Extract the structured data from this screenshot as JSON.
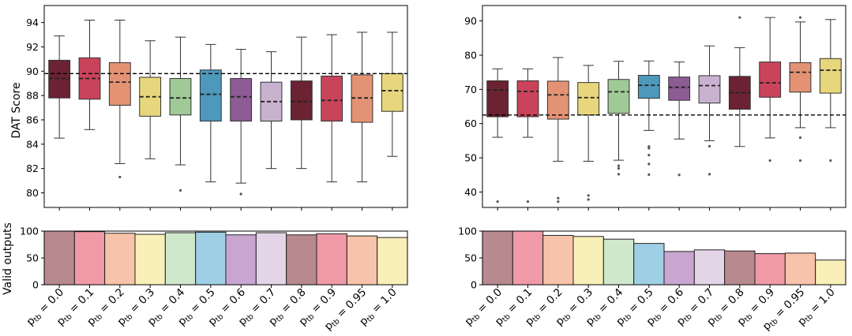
{
  "ylabel_top": "DAT Score",
  "ylabel_bottom": "Valid outputs",
  "chart_data": [
    {
      "type": "box",
      "panel": "top-left",
      "ylabel": "DAT Score",
      "ylim": [
        78.8,
        95.4
      ],
      "yticks": [
        "80",
        "82",
        "84",
        "86",
        "88",
        "90",
        "92",
        "94"
      ],
      "ytick_values": [
        80,
        82,
        84,
        86,
        88,
        90,
        92,
        94
      ],
      "reference_line": 89.8,
      "boxes": [
        {
          "q1": 87.8,
          "q3": 90.9,
          "median": 89.4,
          "whislo": 84.5,
          "whishi": 92.9,
          "fliers": []
        },
        {
          "q1": 87.7,
          "q3": 91.1,
          "median": 89.4,
          "whislo": 85.2,
          "whishi": 94.2,
          "fliers": []
        },
        {
          "q1": 87.2,
          "q3": 90.7,
          "median": 89.1,
          "whislo": 82.4,
          "whishi": 94.2,
          "fliers": [
            81.3
          ]
        },
        {
          "q1": 86.3,
          "q3": 89.5,
          "median": 87.9,
          "whislo": 82.8,
          "whishi": 92.5,
          "fliers": []
        },
        {
          "q1": 86.4,
          "q3": 89.4,
          "median": 87.8,
          "whislo": 82.3,
          "whishi": 92.8,
          "fliers": [
            80.2
          ]
        },
        {
          "q1": 85.9,
          "q3": 90.1,
          "median": 88.1,
          "whislo": 80.9,
          "whishi": 92.2,
          "fliers": []
        },
        {
          "q1": 85.9,
          "q3": 89.4,
          "median": 87.9,
          "whislo": 80.8,
          "whishi": 91.8,
          "fliers": [
            79.9
          ]
        },
        {
          "q1": 85.9,
          "q3": 89.1,
          "median": 87.5,
          "whislo": 82.0,
          "whishi": 91.6,
          "fliers": []
        },
        {
          "q1": 86.0,
          "q3": 89.2,
          "median": 87.5,
          "whislo": 82.0,
          "whishi": 92.8,
          "fliers": []
        },
        {
          "q1": 85.9,
          "q3": 89.6,
          "median": 87.6,
          "whislo": 80.9,
          "whishi": 93.0,
          "fliers": []
        },
        {
          "q1": 85.8,
          "q3": 89.7,
          "median": 87.8,
          "whislo": 80.9,
          "whishi": 93.2,
          "fliers": []
        },
        {
          "q1": 86.7,
          "q3": 89.8,
          "median": 88.4,
          "whislo": 83.0,
          "whishi": 93.2,
          "fliers": []
        }
      ]
    },
    {
      "type": "box",
      "panel": "top-right",
      "ylabel": "",
      "ylim": [
        35.5,
        94.5
      ],
      "yticks": [
        "40",
        "50",
        "60",
        "70",
        "80",
        "90"
      ],
      "ytick_values": [
        40,
        50,
        60,
        70,
        80,
        90
      ],
      "reference_line": 62.5,
      "boxes": [
        {
          "q1": 62.0,
          "q3": 72.5,
          "median": 69.8,
          "whislo": 56.0,
          "whishi": 76.0,
          "fliers": [
            37.2
          ]
        },
        {
          "q1": 62.0,
          "q3": 72.5,
          "median": 69.4,
          "whislo": 56.0,
          "whishi": 76.0,
          "fliers": [
            37.2
          ]
        },
        {
          "q1": 61.3,
          "q3": 72.4,
          "median": 68.4,
          "whislo": 49.0,
          "whishi": 79.3,
          "fliers": [
            38.2,
            37.2
          ]
        },
        {
          "q1": 62.5,
          "q3": 72.0,
          "median": 67.6,
          "whislo": 49.0,
          "whishi": 77.0,
          "fliers": [
            39.0,
            37.8
          ]
        },
        {
          "q1": 63.0,
          "q3": 72.9,
          "median": 69.3,
          "whislo": 49.3,
          "whishi": 78.2,
          "fliers": [
            47.7,
            46.9,
            45.2
          ]
        },
        {
          "q1": 67.4,
          "q3": 74.1,
          "median": 71.2,
          "whislo": 58.0,
          "whishi": 78.3,
          "fliers": [
            53.3,
            52.8,
            50.8,
            48.2,
            45.1
          ]
        },
        {
          "q1": 66.8,
          "q3": 73.6,
          "median": 70.6,
          "whislo": 55.5,
          "whishi": 78.0,
          "fliers": [
            45.0
          ]
        },
        {
          "q1": 66.0,
          "q3": 74.0,
          "median": 71.1,
          "whislo": 55.0,
          "whishi": 82.7,
          "fliers": [
            53.4,
            45.2
          ]
        },
        {
          "q1": 64.2,
          "q3": 73.8,
          "median": 69.0,
          "whislo": 53.3,
          "whishi": 82.2,
          "fliers": [
            91.0
          ]
        },
        {
          "q1": 67.7,
          "q3": 78.0,
          "median": 71.9,
          "whislo": 55.8,
          "whishi": 91.0,
          "fliers": [
            49.2
          ]
        },
        {
          "q1": 69.2,
          "q3": 77.8,
          "median": 75.0,
          "whislo": 58.8,
          "whishi": 89.7,
          "fliers": [
            91.0,
            55.9,
            49.2
          ]
        },
        {
          "q1": 68.9,
          "q3": 79.0,
          "median": 75.6,
          "whislo": 58.8,
          "whishi": 90.4,
          "fliers": [
            49.2
          ]
        }
      ]
    },
    {
      "type": "bar",
      "panel": "bottom-left",
      "ylabel": "Valid outputs",
      "ylim": [
        0,
        100
      ],
      "yticks": [
        "0",
        "50",
        "100"
      ],
      "ytick_values": [
        0,
        50,
        100
      ],
      "values": [
        100,
        99,
        96,
        94,
        97,
        98,
        93,
        97,
        93,
        95,
        91,
        88
      ]
    },
    {
      "type": "bar",
      "panel": "bottom-right",
      "ylabel": "",
      "ylim": [
        0,
        100
      ],
      "yticks": [
        "0",
        "50",
        "100"
      ],
      "ytick_values": [
        0,
        50,
        100
      ],
      "values": [
        100,
        100,
        92,
        90,
        85,
        77,
        62,
        65,
        63,
        58,
        59,
        46
      ]
    }
  ],
  "categories": [
    "0.0",
    "0.1",
    "0.2",
    "0.3",
    "0.4",
    "0.5",
    "0.6",
    "0.7",
    "0.8",
    "0.9",
    "0.95",
    "1.0"
  ],
  "category_prefix": "p",
  "category_subscript": "tb",
  "category_infix": " = ",
  "box_colors": [
    "#6b2232",
    "#c9445a",
    "#e39374",
    "#e7d67b",
    "#9fc996",
    "#4d98bb",
    "#8d5c94",
    "#c9b2cf",
    "#6b2232",
    "#c9445a",
    "#e39374",
    "#e7d67b"
  ],
  "bar_colors": [
    "#b88a8f",
    "#ef9aa6",
    "#f7c3aa",
    "#f9efb8",
    "#cfe7cb",
    "#9fcfe5",
    "#c8a6d0",
    "#e4d4e8",
    "#b88a8f",
    "#ef9aa6",
    "#f7c3aa",
    "#f9efb8"
  ]
}
